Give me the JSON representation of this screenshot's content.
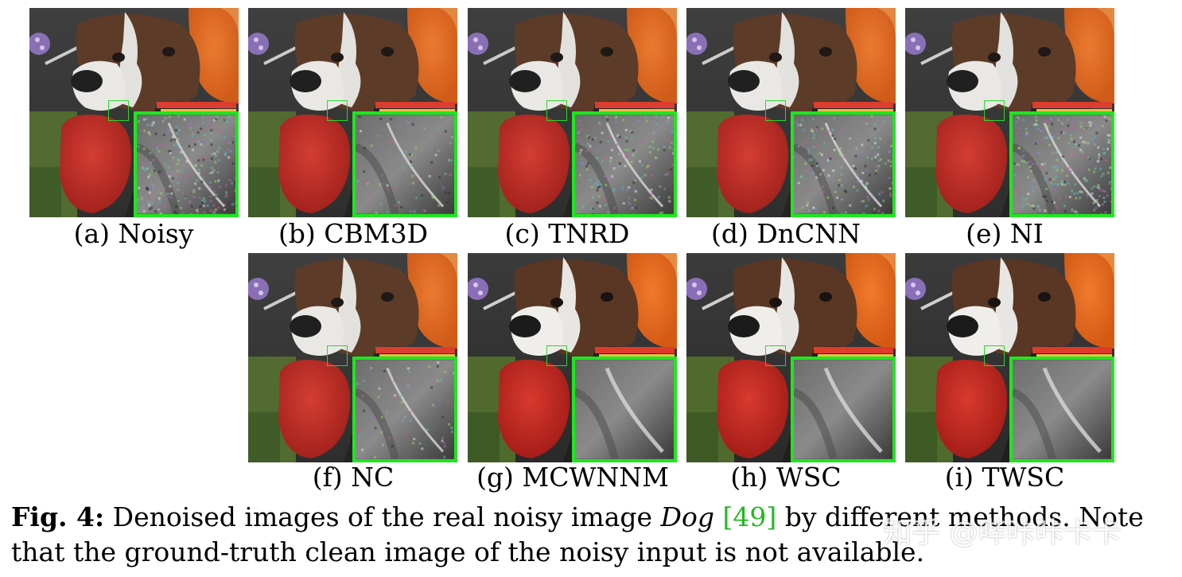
{
  "figure": {
    "panels": [
      {
        "label": "(a) Noisy",
        "zoom_style": "noisy"
      },
      {
        "label": "(b) CBM3D",
        "zoom_style": "mild"
      },
      {
        "label": "(c) TNRD",
        "zoom_style": "noisy-mild"
      },
      {
        "label": "(d) DnCNN",
        "zoom_style": "noisy-mild"
      },
      {
        "label": "(e) NI",
        "zoom_style": "noisy"
      },
      {
        "label": "(f) NC",
        "zoom_style": "mild"
      },
      {
        "label": "(g) MCWNNM",
        "zoom_style": "smooth"
      },
      {
        "label": "(h) WSC",
        "zoom_style": "smooth"
      },
      {
        "label": "(i) TWSC",
        "zoom_style": "smooth"
      }
    ],
    "caption": {
      "fig_label": "Fig. 4:",
      "text_before": " Denoised images of the real noisy image ",
      "image_name": "Dog",
      "citation": "[49]",
      "text_after": " by different methods. Note that the ground-truth clean image of the noisy input is not available."
    },
    "watermark": "知乎 @哔咔咔卡卡"
  },
  "colors": {
    "zoom_border": "#1ee61e",
    "citation": "#22b822"
  }
}
